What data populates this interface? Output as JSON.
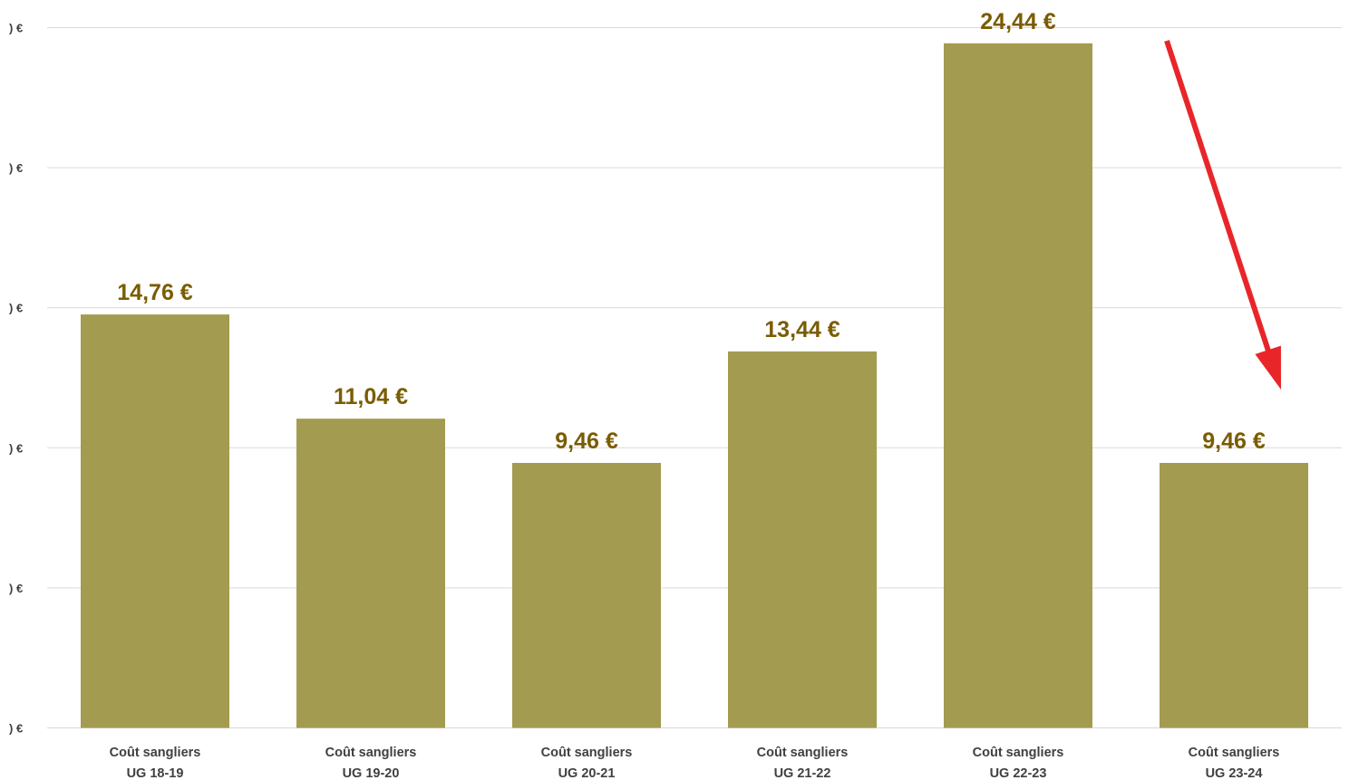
{
  "chart_data": {
    "type": "bar",
    "categories": [
      [
        "Coût sangliers",
        "UG 18-19"
      ],
      [
        "Coût sangliers",
        "UG 19-20"
      ],
      [
        "Coût sangliers",
        "UG 20-21"
      ],
      [
        "Coût sangliers",
        "UG 21-22"
      ],
      [
        "Coût sangliers",
        "UG 22-23"
      ],
      [
        "Coût sangliers",
        "UG 23-24"
      ]
    ],
    "values": [
      14.76,
      11.04,
      9.46,
      13.44,
      24.44,
      9.46
    ],
    "value_labels": [
      "14,76 €",
      "11,04 €",
      "9,46 €",
      "13,44 €",
      "24,44 €",
      "9,46 €"
    ],
    "y_tick_labels": [
      ") €",
      ") €",
      ") €",
      ") €",
      ") €",
      ") €"
    ],
    "y_ticks": [
      0,
      5,
      10,
      15,
      20,
      25
    ],
    "ylim": [
      0,
      25
    ],
    "grid": true,
    "title": "",
    "xlabel": "",
    "ylabel": "",
    "bar_color": "#a39b4f",
    "label_color": "#7a5c00",
    "grid_color": "#d9d9d9",
    "axis_text_color": "#404040",
    "annotation": {
      "type": "arrow",
      "color": "#e8262a",
      "from_category_index": 4,
      "to_category_index": 5
    }
  }
}
